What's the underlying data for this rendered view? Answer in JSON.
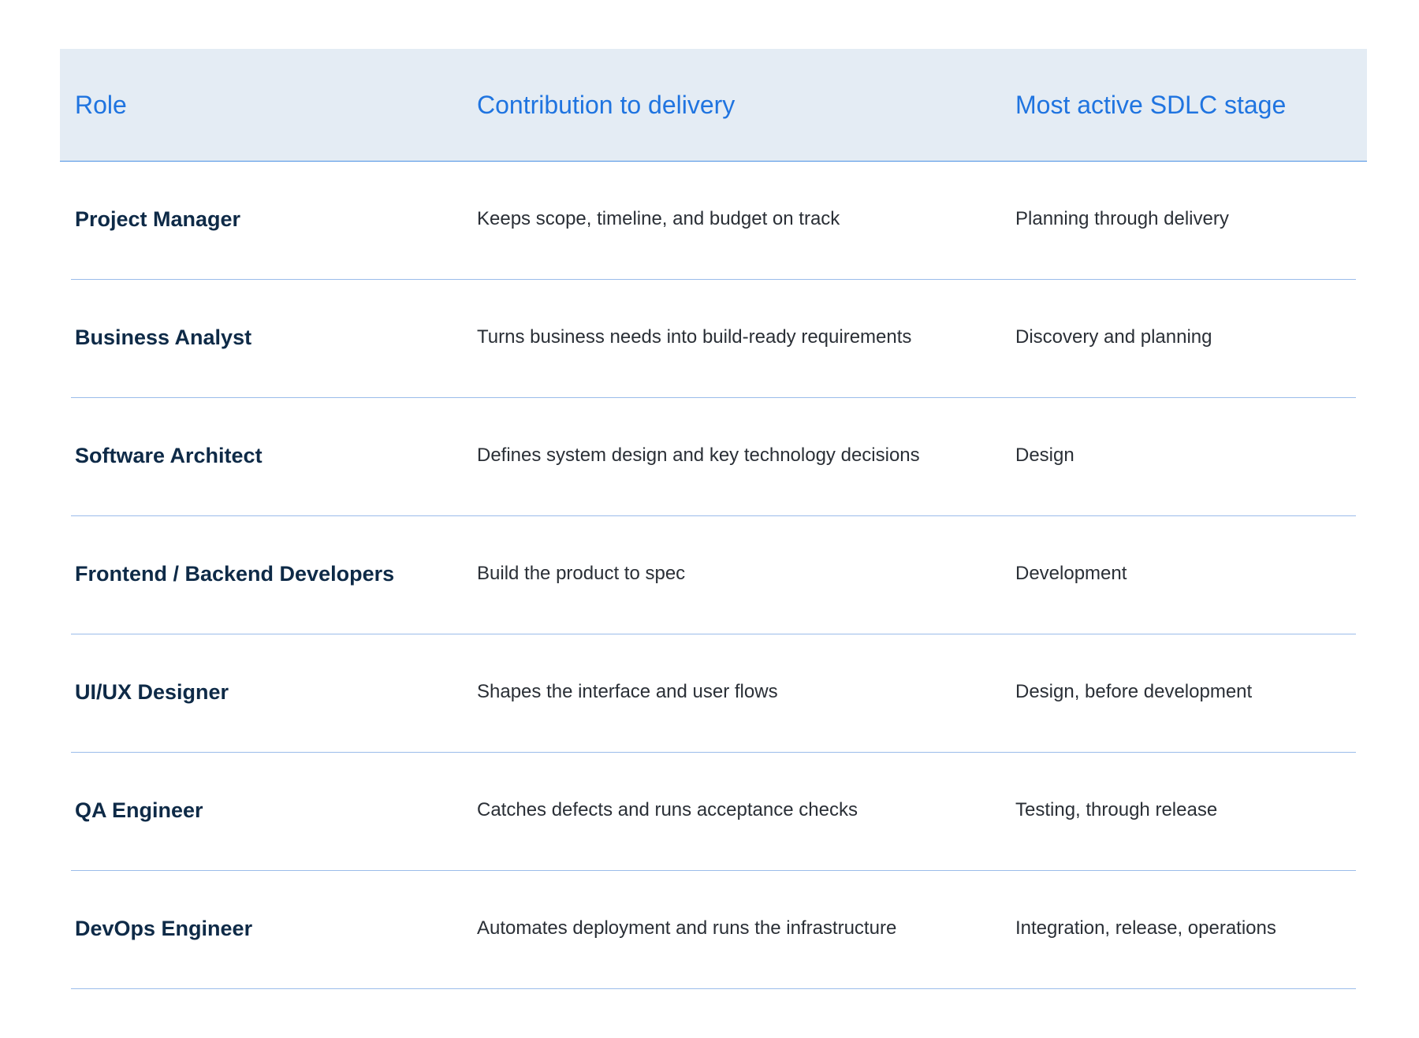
{
  "table": {
    "headers": {
      "role": "Role",
      "contribution": "Contribution to delivery",
      "stage": "Most active SDLC stage"
    },
    "rows": [
      {
        "role": "Project Manager",
        "contribution": "Keeps scope, timeline, and budget on track",
        "stage": "Planning through delivery"
      },
      {
        "role": "Business Analyst",
        "contribution": "Turns business needs into build-ready requirements",
        "stage": "Discovery and planning"
      },
      {
        "role": "Software Architect",
        "contribution": "Defines system design and key technology decisions",
        "stage": "Design"
      },
      {
        "role": "Frontend / Backend Developers",
        "contribution": "Build the product to spec",
        "stage": "Development"
      },
      {
        "role": "UI/UX Designer",
        "contribution": "Shapes the interface and user flows",
        "stage": "Design, before development"
      },
      {
        "role": "QA Engineer",
        "contribution": "Catches defects and runs acceptance checks",
        "stage": "Testing, through release"
      },
      {
        "role": "DevOps Engineer",
        "contribution": "Automates deployment and runs the infrastructure",
        "stage": "Integration, release, operations"
      }
    ]
  },
  "colors": {
    "header_bg": "#e4ecf4",
    "header_text": "#1f74e0",
    "role_text": "#0e2a47",
    "body_text": "#2a2f36",
    "divider": "#9bbcea"
  }
}
